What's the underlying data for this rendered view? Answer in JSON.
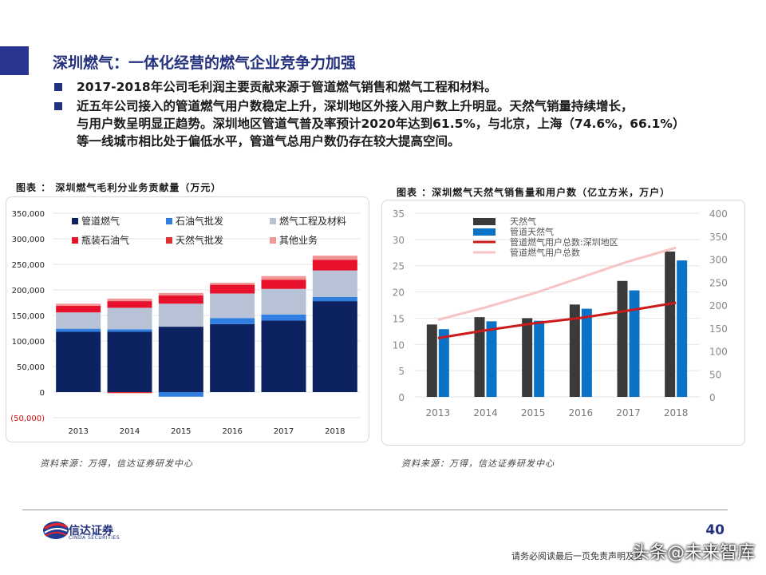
{
  "header": {
    "title": "深圳燃气：一体化经营的燃气企业竞争力加强",
    "bullets": [
      "2017-2018年公司毛利润主要贡献来源于管道燃气销售和燃气工程和材料。",
      "近五年公司接入的管道燃气用户数稳定上升，深圳地区外接入用户数上升明显。天然气销量持续增长，",
      "与用户数呈明显正趋势。深圳地区管道气普及率预计2020年达到61.5%，与北京，上海（74.6%，66.1%）",
      "等一线城市相比处于偏低水平，管道气总用户数仍存在较大提高空间。"
    ]
  },
  "figure_left": {
    "title": "图表 ： 深圳燃气毛利分业务贡献量（万元）",
    "source": "资料来源：万得，信达证券研发中心"
  },
  "figure_right": {
    "title": "图表 ：深圳燃气天然气销售量和用户数（亿立方米，万户）",
    "source": "资料来源：万得，信达证券研发中心"
  },
  "chart_data": [
    {
      "type": "bar",
      "stacked": true,
      "categories": [
        "2013",
        "2014",
        "2015",
        "2016",
        "2017",
        "2018"
      ],
      "ylim": [
        -50000,
        350000
      ],
      "yticks": [
        -50000,
        0,
        50000,
        100000,
        150000,
        200000,
        250000,
        300000,
        350000
      ],
      "ytick_labels": [
        "(50,000)",
        "0",
        "50,000",
        "100,000",
        "150,000",
        "200,000",
        "250,000",
        "300,000",
        "350,000"
      ],
      "grid": true,
      "legend_position": "top",
      "series": [
        {
          "name": "管道燃气",
          "color": "#0d2260",
          "values": [
            118000,
            118000,
            128000,
            133000,
            140000,
            178000
          ]
        },
        {
          "name": "石油气批发",
          "color": "#2f7ee0",
          "values": [
            6000,
            5000,
            -9000,
            12000,
            12000,
            8000
          ]
        },
        {
          "name": "燃气工程及材料",
          "color": "#b8c2d6",
          "values": [
            32000,
            42000,
            45000,
            48000,
            50000,
            52000
          ]
        },
        {
          "name": "瓶装石油气",
          "color": "#e8102a",
          "values": [
            13000,
            13000,
            16000,
            17000,
            18000,
            21000
          ]
        },
        {
          "name": "天然气批发",
          "color": "#e13030",
          "values": [
            0,
            -2000,
            0,
            0,
            0,
            0
          ]
        },
        {
          "name": "其他业务",
          "color": "#f29595",
          "values": [
            4000,
            5000,
            5000,
            4000,
            7000,
            8000
          ]
        }
      ]
    },
    {
      "type": "bar",
      "categories": [
        "2013",
        "2014",
        "2015",
        "2016",
        "2017",
        "2018"
      ],
      "y_left": {
        "ylim": [
          0,
          35
        ],
        "ticks": [
          "0",
          "5",
          "10",
          "15",
          "20",
          "25",
          "30",
          "35"
        ]
      },
      "y_right": {
        "ylim": [
          0,
          400
        ],
        "ticks": [
          "0",
          "50",
          "100",
          "150",
          "200",
          "250",
          "300",
          "350",
          "400"
        ]
      },
      "grid": true,
      "legend_position": "top-left",
      "series": [
        {
          "name": "天然气",
          "kind": "bar",
          "axis": "left",
          "color": "#3a3a3a",
          "values": [
            13.8,
            15.2,
            15.0,
            17.6,
            22.1,
            27.7
          ]
        },
        {
          "name": "管道天然气",
          "kind": "bar",
          "axis": "left",
          "color": "#0a73c8",
          "values": [
            12.9,
            14.4,
            14.5,
            16.8,
            20.3,
            26.0
          ]
        },
        {
          "name": "管道燃气用户总数:深圳地区",
          "kind": "line",
          "axis": "right",
          "color": "#cc1a1a",
          "values": [
            128,
            145,
            160,
            172,
            188,
            205
          ]
        },
        {
          "name": "管道燃气用户总数",
          "kind": "line",
          "axis": "right",
          "color": "#f6c4c4",
          "values": [
            168,
            195,
            225,
            260,
            295,
            325
          ]
        }
      ]
    }
  ],
  "footer": {
    "company_name": "信达证券",
    "company_sub": "CINDA SECURITIES",
    "page_number": "40",
    "disclaimer": "请务必阅读最后一页免责声明及信",
    "watermark": "头条@未来智库"
  }
}
